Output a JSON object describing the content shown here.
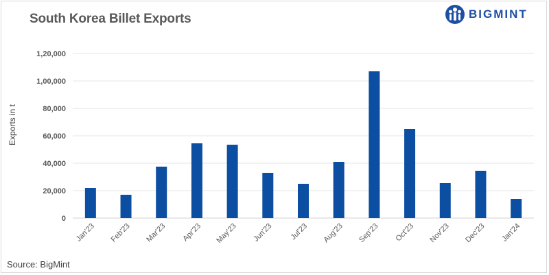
{
  "header": {
    "title": "South Korea Billet Exports",
    "logo_text": "BIGMINT"
  },
  "footer": {
    "source": "Source: BigMint"
  },
  "colors": {
    "bar": "#0b4ea2",
    "grid": "#e6e6e6",
    "brand": "#1d4fa3"
  },
  "chart_data": {
    "type": "bar",
    "title": "South Korea Billet Exports",
    "xlabel": "",
    "ylabel": "Exports in t",
    "ylim": [
      0,
      120000
    ],
    "yticks": [
      0,
      20000,
      40000,
      60000,
      80000,
      100000,
      120000
    ],
    "ytick_labels": [
      "0",
      "20,000",
      "40,000",
      "60,000",
      "80,000",
      "1,00,000",
      "1,20,000"
    ],
    "grid": true,
    "legend": "none",
    "categories": [
      "Jan'23",
      "Feb'23",
      "Mar'23",
      "Apr'23",
      "May'23",
      "Jun'23",
      "Jul'23",
      "Aug'23",
      "Sep'23",
      "Oct'23",
      "Nov'23",
      "Dec'23",
      "Jan'24"
    ],
    "values": [
      22000,
      17000,
      37500,
      54500,
      53500,
      33000,
      25000,
      41000,
      107000,
      65000,
      25500,
      34500,
      14000
    ]
  }
}
